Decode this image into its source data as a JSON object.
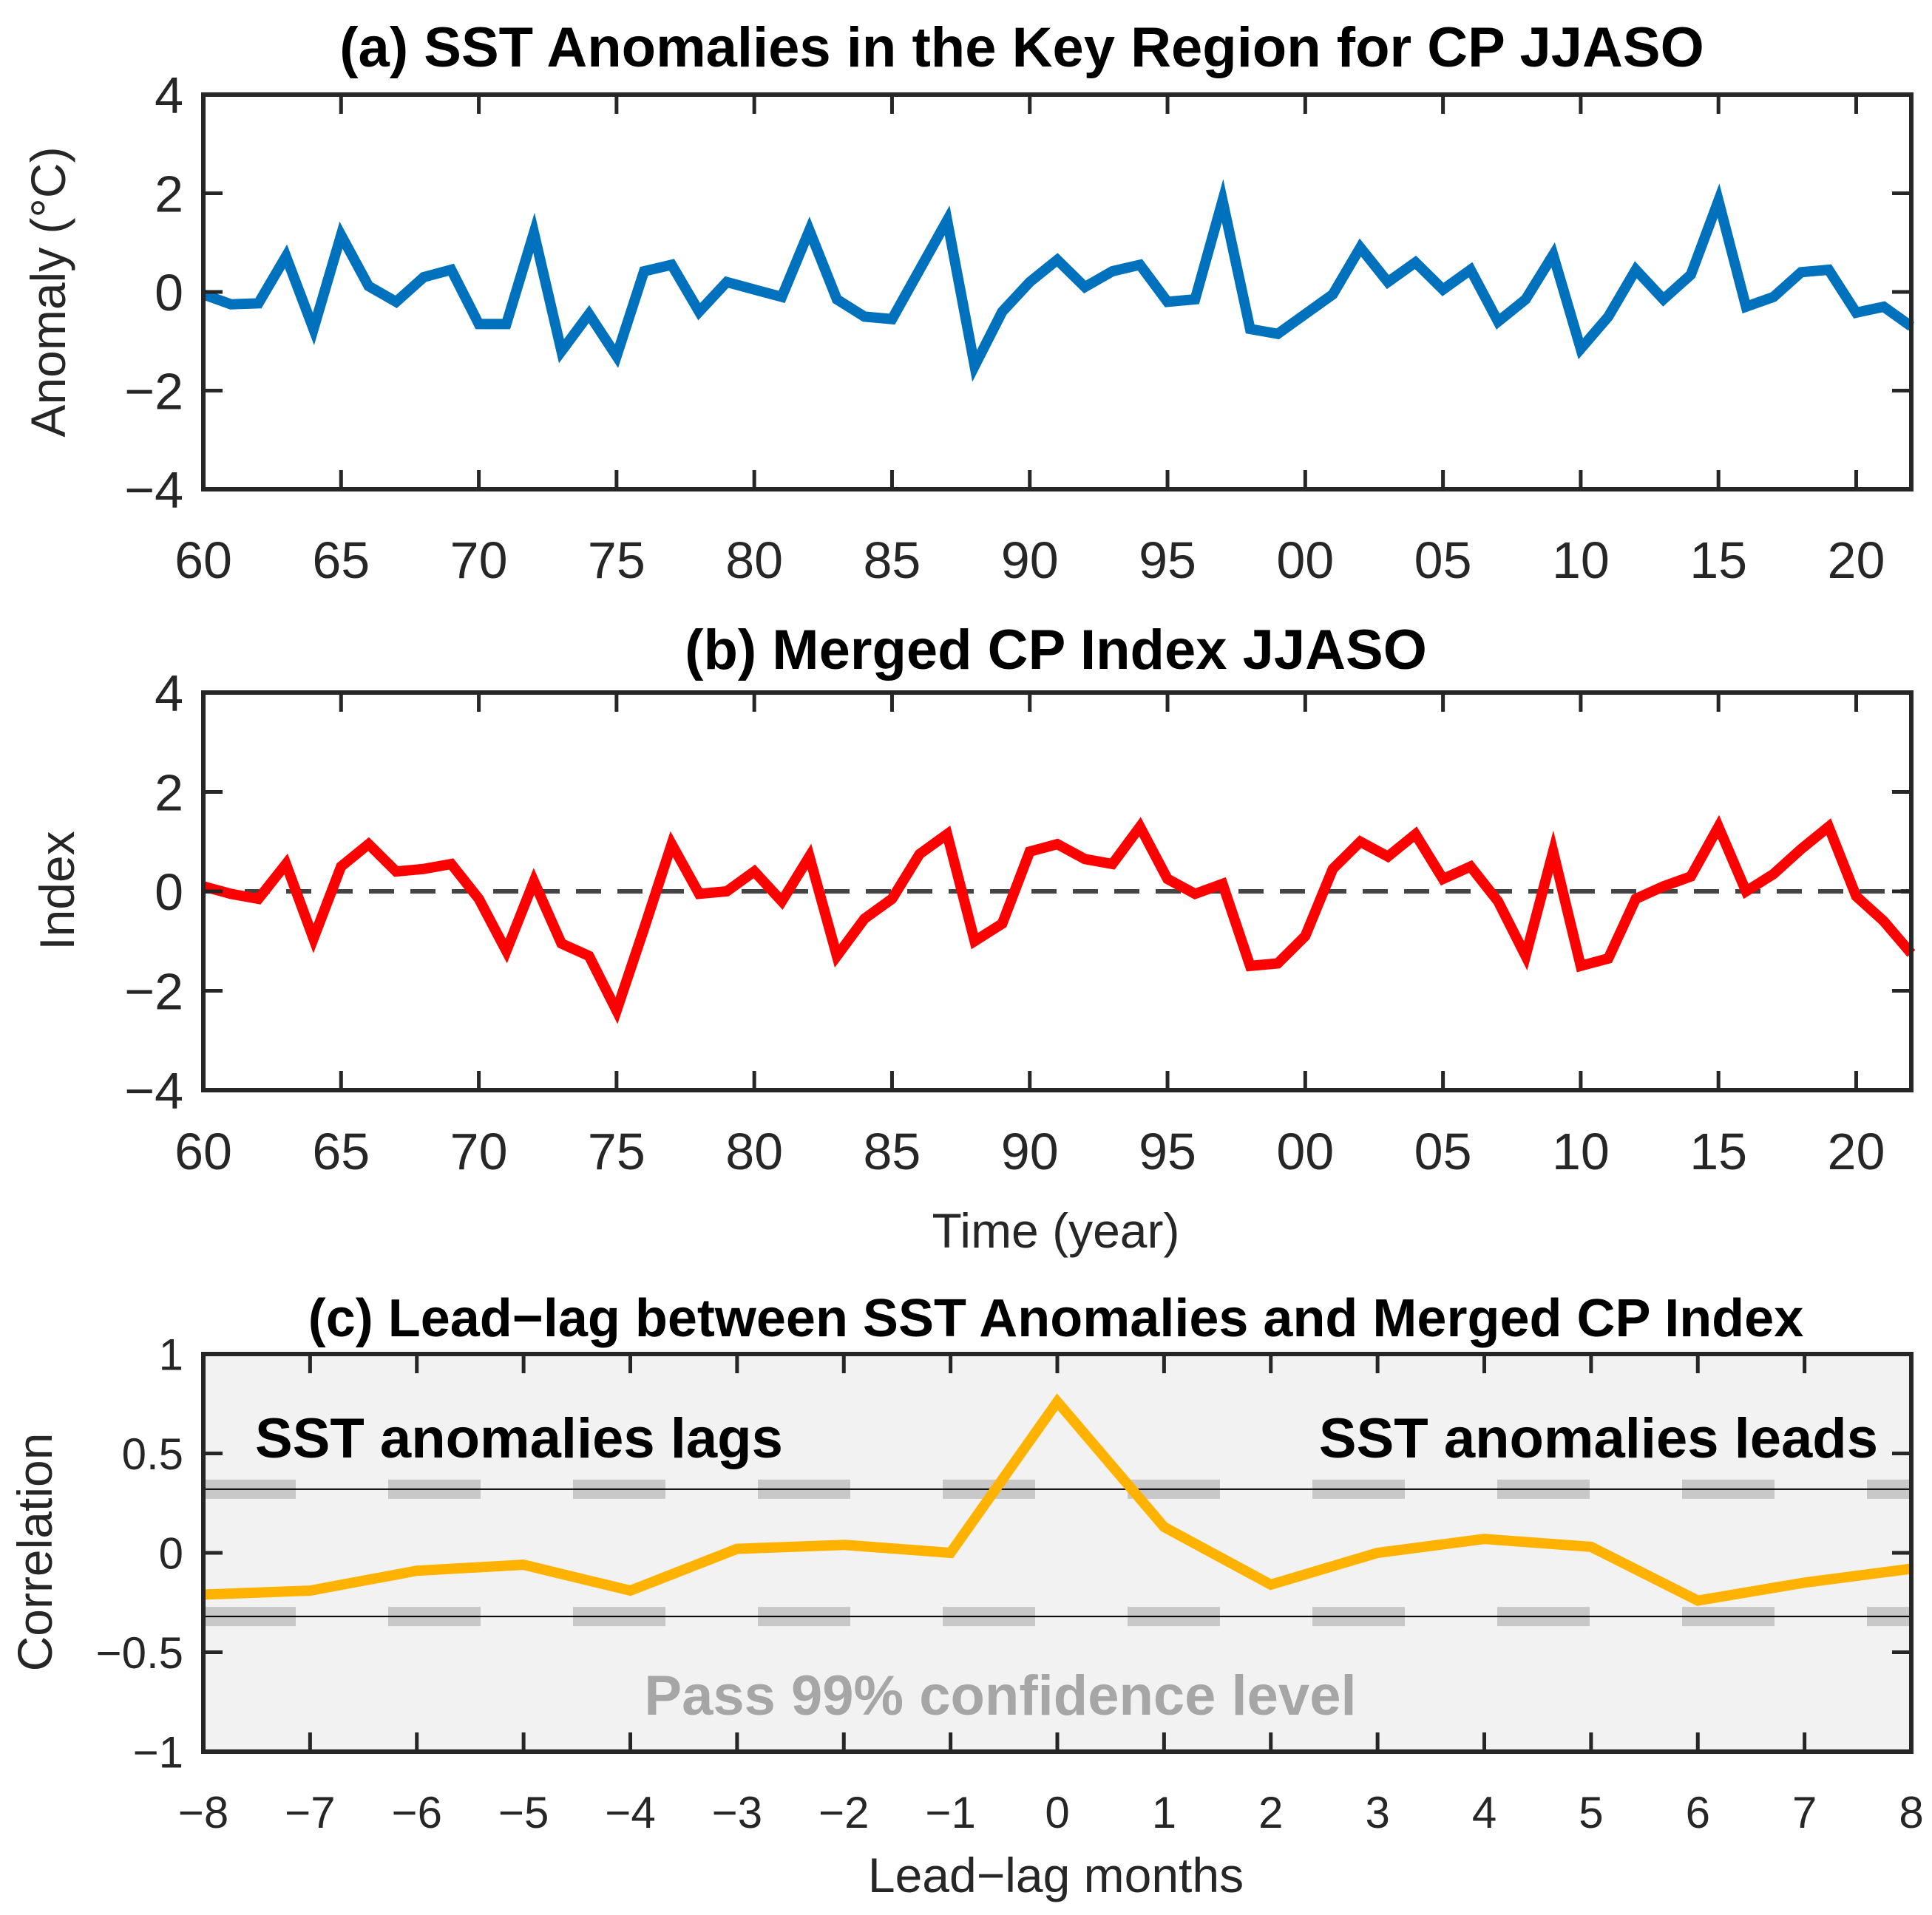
{
  "chart_data": [
    {
      "type": "line",
      "title": "(a) SST Anomalies in the Key Region for CP JJASO",
      "xlabel": "",
      "ylabel": "Anomaly (°C)",
      "xlim": [
        1960,
        2022
      ],
      "ylim": [
        -4,
        4
      ],
      "xticks": [
        1960,
        1965,
        1970,
        1975,
        1980,
        1985,
        1990,
        1995,
        2000,
        2005,
        2010,
        2015,
        2020
      ],
      "xtick_labels": [
        "60",
        "65",
        "70",
        "75",
        "80",
        "85",
        "90",
        "95",
        "00",
        "05",
        "10",
        "15",
        "20"
      ],
      "yticks": [
        -4,
        -2,
        0,
        2,
        4
      ],
      "ytick_labels": [
        "−4",
        "−2",
        "0",
        "2",
        "4"
      ],
      "series": [
        {
          "name": "SST anomalies",
          "color": "#0072BD",
          "x": [
            1960,
            1961,
            1962,
            1963,
            1964,
            1965,
            1966,
            1967,
            1968,
            1969,
            1970,
            1971,
            1972,
            1973,
            1974,
            1975,
            1976,
            1977,
            1978,
            1979,
            1980,
            1981,
            1982,
            1983,
            1984,
            1985,
            1986,
            1987,
            1988,
            1989,
            1990,
            1991,
            1992,
            1993,
            1994,
            1995,
            1996,
            1997,
            1998,
            1999,
            2000,
            2001,
            2002,
            2003,
            2004,
            2005,
            2006,
            2007,
            2008,
            2009,
            2010,
            2011,
            2012,
            2013,
            2014,
            2015,
            2016,
            2017,
            2018,
            2019,
            2020,
            2021,
            2022
          ],
          "values": [
            -0.05,
            -0.25,
            -0.23,
            0.72,
            -0.75,
            1.15,
            0.12,
            -0.2,
            0.3,
            0.45,
            -0.65,
            -0.65,
            1.2,
            -1.2,
            -0.45,
            -1.3,
            0.42,
            0.55,
            -0.4,
            0.2,
            0.05,
            -0.1,
            1.25,
            -0.15,
            -0.5,
            -0.55,
            0.45,
            1.45,
            -1.5,
            -0.4,
            0.2,
            0.65,
            0.1,
            0.42,
            0.55,
            -0.2,
            -0.15,
            1.85,
            -0.75,
            -0.85,
            -0.45,
            -0.05,
            0.9,
            0.2,
            0.6,
            0.05,
            0.45,
            -0.6,
            -0.15,
            0.75,
            -1.15,
            -0.5,
            0.45,
            -0.15,
            0.35,
            1.85,
            -0.3,
            -0.1,
            0.4,
            0.45,
            -0.42,
            -0.3,
            -0.7
          ]
        }
      ]
    },
    {
      "type": "line",
      "title": "(b) Merged CP Index JJASO",
      "xlabel": "Time (year)",
      "ylabel": "Index",
      "xlim": [
        1960,
        2022
      ],
      "ylim": [
        -4,
        4
      ],
      "xticks": [
        1960,
        1965,
        1970,
        1975,
        1980,
        1985,
        1990,
        1995,
        2000,
        2005,
        2010,
        2015,
        2020
      ],
      "xtick_labels": [
        "60",
        "65",
        "70",
        "75",
        "80",
        "85",
        "90",
        "95",
        "00",
        "05",
        "10",
        "15",
        "20"
      ],
      "yticks": [
        -4,
        -2,
        0,
        2,
        4
      ],
      "ytick_labels": [
        "−4",
        "−2",
        "0",
        "2",
        "4"
      ],
      "reference_line": {
        "y": 0,
        "style": "dashed",
        "color": "#444444"
      },
      "series": [
        {
          "name": "Merged CP Index",
          "color": "#FF0000",
          "x": [
            1960,
            1961,
            1962,
            1963,
            1964,
            1965,
            1966,
            1967,
            1968,
            1969,
            1970,
            1971,
            1972,
            1973,
            1974,
            1975,
            1976,
            1977,
            1978,
            1979,
            1980,
            1981,
            1982,
            1983,
            1984,
            1985,
            1986,
            1987,
            1988,
            1989,
            1990,
            1991,
            1992,
            1993,
            1994,
            1995,
            1996,
            1997,
            1998,
            1999,
            2000,
            2001,
            2002,
            2003,
            2004,
            2005,
            2006,
            2007,
            2008,
            2009,
            2010,
            2011,
            2012,
            2013,
            2014,
            2015,
            2016,
            2017,
            2018,
            2019,
            2020,
            2021,
            2022
          ],
          "values": [
            0.1,
            -0.05,
            -0.15,
            0.55,
            -0.95,
            0.5,
            0.95,
            0.4,
            0.45,
            0.55,
            -0.15,
            -1.2,
            0.2,
            -1.05,
            -1.3,
            -2.4,
            -0.75,
            0.95,
            -0.05,
            0.0,
            0.4,
            -0.2,
            0.7,
            -1.3,
            -0.55,
            -0.15,
            0.75,
            1.15,
            -1.0,
            -0.65,
            0.8,
            0.95,
            0.65,
            0.55,
            1.3,
            0.25,
            -0.05,
            0.15,
            -1.5,
            -1.45,
            -0.9,
            0.45,
            1.0,
            0.7,
            1.15,
            0.25,
            0.5,
            -0.2,
            -1.3,
            0.8,
            -1.5,
            -1.35,
            -0.15,
            0.1,
            0.3,
            1.3,
            0.0,
            0.35,
            0.85,
            1.3,
            -0.1,
            -0.6,
            -1.25
          ]
        }
      ]
    },
    {
      "type": "line",
      "title": "(c) Lead−lag between SST Anomalies and Merged CP Index",
      "xlabel": "Lead−lag months",
      "ylabel": "Correlation",
      "xlim": [
        -8,
        8
      ],
      "ylim": [
        -1,
        1
      ],
      "xticks": [
        -8,
        -7,
        -6,
        -5,
        -4,
        -3,
        -2,
        -1,
        0,
        1,
        2,
        3,
        4,
        5,
        6,
        7,
        8
      ],
      "xtick_labels": [
        "−8",
        "−7",
        "−6",
        "−5",
        "−4",
        "−3",
        "−2",
        "−1",
        "0",
        "1",
        "2",
        "3",
        "4",
        "5",
        "6",
        "7",
        "8"
      ],
      "yticks": [
        -1,
        -0.5,
        0,
        0.5,
        1
      ],
      "ytick_labels": [
        "−1",
        "−0.5",
        "0",
        "0.5",
        "1"
      ],
      "confidence_level": 0.32,
      "annotations": {
        "left": "SST anomalies lags",
        "right": "SST anomalies leads",
        "bottom": "Pass 99% confidence level"
      },
      "series": [
        {
          "name": "Correlation",
          "color": "#FFB300",
          "x": [
            -8,
            -7,
            -6,
            -5,
            -4,
            -3,
            -2,
            -1,
            0,
            1,
            2,
            3,
            4,
            5,
            6,
            7,
            8
          ],
          "values": [
            -0.21,
            -0.19,
            -0.09,
            -0.06,
            -0.19,
            0.02,
            0.04,
            0.0,
            0.76,
            0.13,
            -0.16,
            -0.0,
            0.07,
            0.03,
            -0.24,
            -0.15,
            -0.08
          ]
        }
      ]
    }
  ]
}
